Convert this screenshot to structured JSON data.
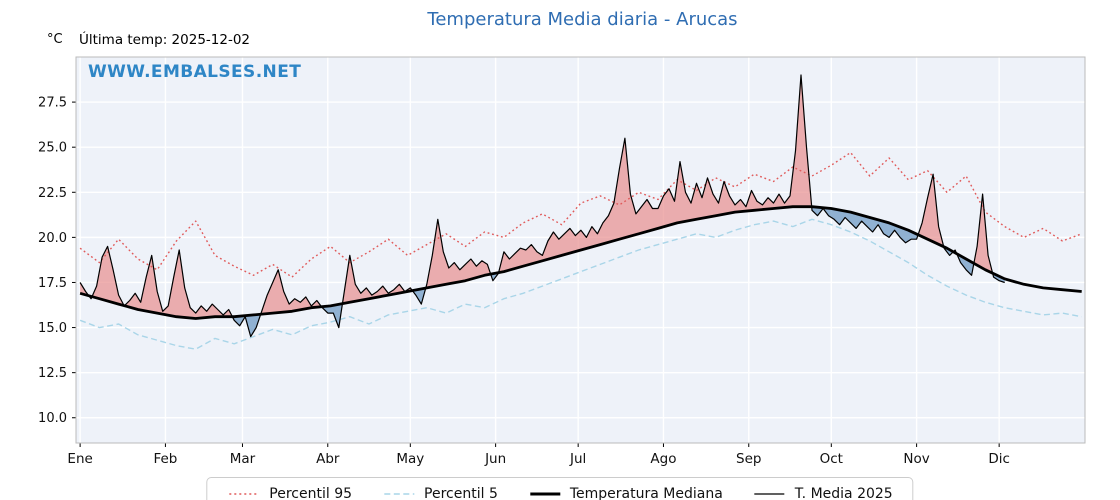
{
  "header": {
    "title": "Temperatura Media diaria - Arucas",
    "y_unit": "°C",
    "last_temp_label": "Última temp: 2025-12-02",
    "watermark": "WWW.EMBALSES.NET"
  },
  "colors": {
    "title": "#2f6db2",
    "watermark": "#2e86c6",
    "p95": "#e05a5a",
    "p5": "#a9d5e8",
    "median": "#000000",
    "t2025": "#000000",
    "fill_above": "#e88f8f",
    "fill_below": "#7fa6cb",
    "plot_bg": "#eef2f9",
    "grid": "#ffffff"
  },
  "chart_data": {
    "type": "line",
    "title": "Temperatura Media diaria - Arucas",
    "xlabel": "",
    "ylabel": "°C",
    "ylim": [
      8.6,
      30.0
    ],
    "yticks": [
      10.0,
      12.5,
      15.0,
      17.5,
      20.0,
      22.5,
      25.0,
      27.5
    ],
    "month_labels": [
      "Ene",
      "Feb",
      "Mar",
      "Abr",
      "May",
      "Jun",
      "Jul",
      "Ago",
      "Sep",
      "Oct",
      "Nov",
      "Dic"
    ],
    "month_start_days": [
      0,
      31,
      59,
      90,
      120,
      151,
      181,
      212,
      243,
      273,
      304,
      334
    ],
    "x_range_days": [
      -1.5,
      365.2
    ],
    "legend": [
      "Percentil 95",
      "Percentil 5",
      "Temperatura Mediana",
      "T. Media 2025"
    ],
    "series": [
      {
        "name": "Percentil 95",
        "style": "dotted",
        "color_key": "p95",
        "x": [
          0,
          7,
          14,
          21,
          28,
          35,
          42,
          49,
          56,
          63,
          70,
          77,
          84,
          91,
          98,
          105,
          112,
          119,
          126,
          133,
          140,
          147,
          154,
          161,
          168,
          175,
          182,
          189,
          196,
          203,
          210,
          217,
          224,
          231,
          238,
          245,
          252,
          259,
          266,
          273,
          280,
          287,
          294,
          301,
          308,
          315,
          322,
          329,
          336,
          343,
          350,
          357,
          364
        ],
        "values": [
          19.4,
          18.6,
          19.9,
          18.8,
          18.2,
          19.8,
          20.9,
          19.0,
          18.4,
          17.9,
          18.5,
          17.8,
          18.8,
          19.5,
          18.6,
          19.2,
          19.9,
          19.0,
          19.6,
          20.2,
          19.5,
          20.3,
          20.0,
          20.8,
          21.3,
          20.7,
          21.9,
          22.3,
          21.8,
          22.5,
          22.1,
          23.2,
          22.6,
          23.3,
          22.8,
          23.5,
          23.1,
          23.9,
          23.4,
          24.0,
          24.7,
          23.4,
          24.4,
          23.2,
          23.7,
          22.5,
          23.4,
          21.4,
          20.6,
          20.0,
          20.5,
          19.8,
          20.2
        ]
      },
      {
        "name": "Percentil 5",
        "style": "dashed",
        "color_key": "p5",
        "x": [
          0,
          7,
          14,
          21,
          28,
          35,
          42,
          49,
          56,
          63,
          70,
          77,
          84,
          91,
          98,
          105,
          112,
          119,
          126,
          133,
          140,
          147,
          154,
          161,
          168,
          175,
          182,
          189,
          196,
          203,
          210,
          217,
          224,
          231,
          238,
          245,
          252,
          259,
          266,
          273,
          280,
          287,
          294,
          301,
          308,
          315,
          322,
          329,
          336,
          343,
          350,
          357,
          364
        ],
        "values": [
          15.4,
          15.0,
          15.2,
          14.6,
          14.3,
          14.0,
          13.8,
          14.4,
          14.1,
          14.5,
          14.9,
          14.6,
          15.1,
          15.3,
          15.6,
          15.2,
          15.7,
          15.9,
          16.1,
          15.8,
          16.3,
          16.1,
          16.6,
          16.9,
          17.3,
          17.7,
          18.1,
          18.5,
          18.9,
          19.3,
          19.6,
          19.9,
          20.2,
          20.0,
          20.4,
          20.7,
          20.9,
          20.6,
          21.0,
          20.7,
          20.3,
          19.8,
          19.2,
          18.6,
          17.9,
          17.3,
          16.8,
          16.4,
          16.1,
          15.9,
          15.7,
          15.8,
          15.6
        ]
      },
      {
        "name": "Temperatura Mediana",
        "style": "solid-thick",
        "color_key": "median",
        "x": [
          0,
          7,
          14,
          21,
          28,
          35,
          42,
          49,
          56,
          63,
          70,
          77,
          84,
          91,
          98,
          105,
          112,
          119,
          126,
          133,
          140,
          147,
          154,
          161,
          168,
          175,
          182,
          189,
          196,
          203,
          210,
          217,
          224,
          231,
          238,
          245,
          252,
          259,
          266,
          273,
          280,
          287,
          294,
          301,
          308,
          315,
          322,
          329,
          336,
          343,
          350,
          357,
          364
        ],
        "values": [
          16.9,
          16.6,
          16.3,
          16.0,
          15.8,
          15.6,
          15.5,
          15.6,
          15.6,
          15.7,
          15.8,
          15.9,
          16.1,
          16.2,
          16.4,
          16.6,
          16.8,
          17.0,
          17.2,
          17.4,
          17.6,
          17.9,
          18.1,
          18.4,
          18.7,
          19.0,
          19.3,
          19.6,
          19.9,
          20.2,
          20.5,
          20.8,
          21.0,
          21.2,
          21.4,
          21.5,
          21.6,
          21.7,
          21.7,
          21.6,
          21.4,
          21.1,
          20.8,
          20.4,
          19.9,
          19.4,
          18.8,
          18.2,
          17.7,
          17.4,
          17.2,
          17.1,
          17.0
        ]
      },
      {
        "name": "T. Media 2025",
        "style": "solid-thin",
        "color_key": "t2025",
        "x_start": 0,
        "x_step": 2,
        "values": [
          17.5,
          17.0,
          16.6,
          17.3,
          18.9,
          19.5,
          18.2,
          16.8,
          16.2,
          16.5,
          16.9,
          16.4,
          17.8,
          19.0,
          17.0,
          15.9,
          16.2,
          17.8,
          19.3,
          17.2,
          16.1,
          15.8,
          16.2,
          15.9,
          16.3,
          16.0,
          15.7,
          16.0,
          15.4,
          15.1,
          15.6,
          14.5,
          15.0,
          15.9,
          16.8,
          17.5,
          18.2,
          17.0,
          16.3,
          16.6,
          16.4,
          16.7,
          16.2,
          16.5,
          16.1,
          15.8,
          15.8,
          15.0,
          17.0,
          19.0,
          17.4,
          16.9,
          17.2,
          16.8,
          17.0,
          17.3,
          16.9,
          17.1,
          17.4,
          17.0,
          17.2,
          16.8,
          16.3,
          17.4,
          19.0,
          21.0,
          19.2,
          18.3,
          18.6,
          18.2,
          18.5,
          18.8,
          18.4,
          18.7,
          18.5,
          17.6,
          18.0,
          19.2,
          18.8,
          19.1,
          19.4,
          19.3,
          19.6,
          19.2,
          19.0,
          19.8,
          20.3,
          19.9,
          20.2,
          20.5,
          20.1,
          20.4,
          20.0,
          20.6,
          20.2,
          20.8,
          21.2,
          21.9,
          23.8,
          25.5,
          22.4,
          21.3,
          21.7,
          22.1,
          21.6,
          21.6,
          22.3,
          22.7,
          22.0,
          24.2,
          22.5,
          21.9,
          23.0,
          22.2,
          23.3,
          22.4,
          21.9,
          23.1,
          22.3,
          21.8,
          22.1,
          21.7,
          22.6,
          22.0,
          21.8,
          22.2,
          21.9,
          22.4,
          21.9,
          22.3,
          24.8,
          29.0,
          25.0,
          21.5,
          21.2,
          21.6,
          21.2,
          21.0,
          20.7,
          21.1,
          20.8,
          20.5,
          20.9,
          20.6,
          20.3,
          20.7,
          20.2,
          20.0,
          20.4,
          20.0,
          19.7,
          19.9,
          19.9,
          20.8,
          22.2,
          23.5,
          20.6,
          19.4,
          19.0,
          19.3,
          18.6,
          18.2,
          17.9,
          19.5,
          22.4,
          19.0,
          17.8,
          17.6,
          17.5
        ]
      }
    ]
  }
}
